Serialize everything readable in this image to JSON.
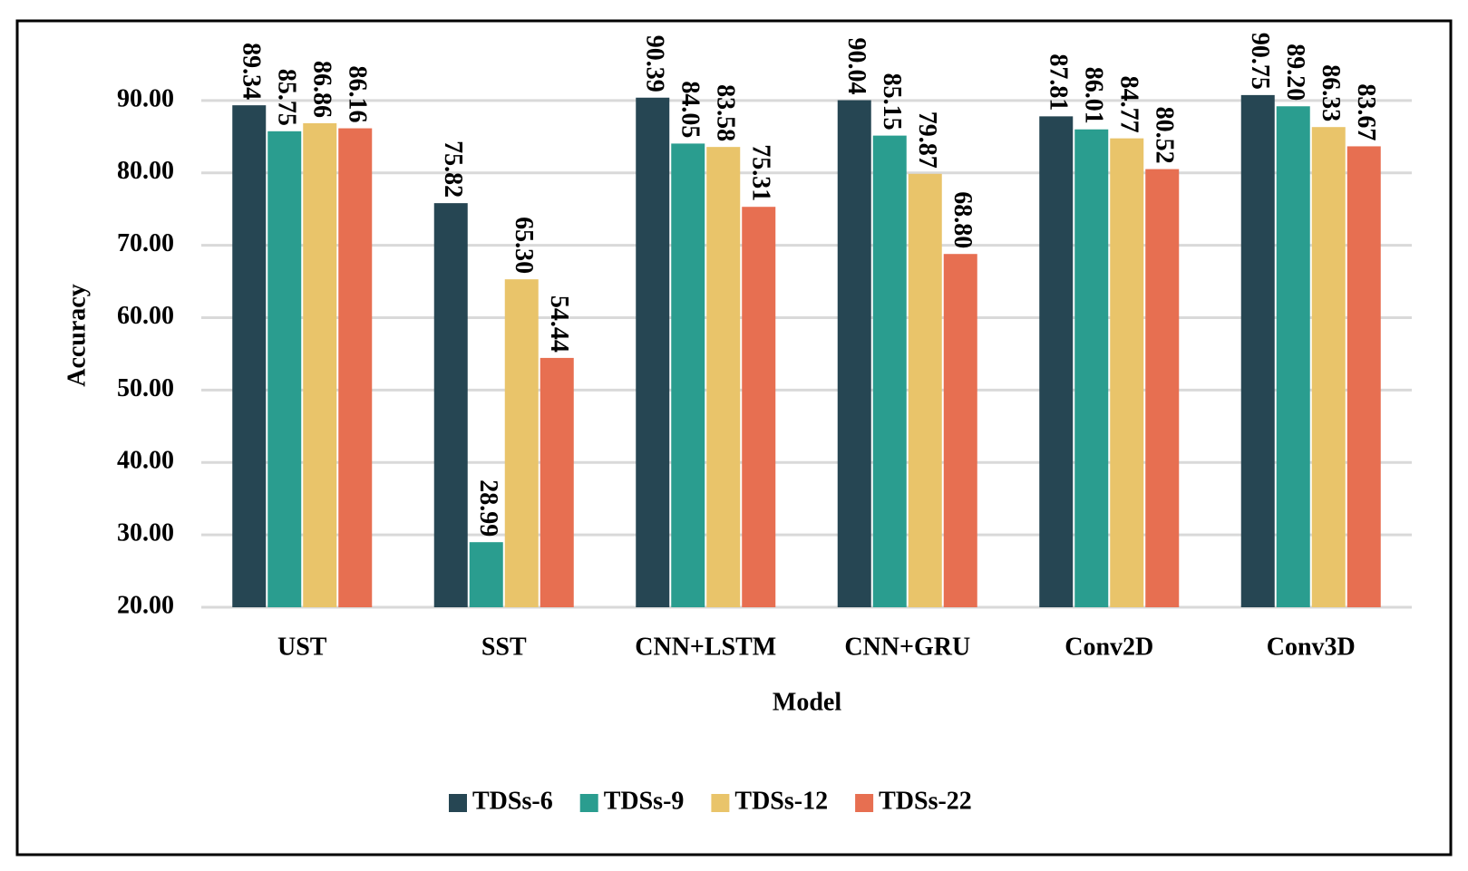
{
  "chart_data": {
    "type": "bar",
    "x_label": "Model",
    "y_label": "Accuracy",
    "categories": [
      "UST",
      "SST",
      "CNN+LSTM",
      "CNN+GRU",
      "Conv2D",
      "Conv3D"
    ],
    "series": [
      {
        "name": "TDSs-6",
        "color": "#264653",
        "values": [
          89.34,
          75.82,
          90.39,
          90.04,
          87.81,
          90.75
        ],
        "value_labels": [
          "89.34",
          "75.82",
          "90.39",
          "90.04",
          "87.81",
          "90.75"
        ]
      },
      {
        "name": "TDSs-9",
        "color": "#2a9d8f",
        "values": [
          85.75,
          28.99,
          84.05,
          85.15,
          86.01,
          89.2
        ],
        "value_labels": [
          "85.75",
          "28.99",
          "84.05",
          "85.15",
          "86.01",
          "89.20"
        ]
      },
      {
        "name": "TDSs-12",
        "color": "#e9c46a",
        "values": [
          86.86,
          65.3,
          83.58,
          79.87,
          84.77,
          86.33
        ],
        "value_labels": [
          "86.86",
          "65.30",
          "83.58",
          "79.87",
          "84.77",
          "86.33"
        ]
      },
      {
        "name": "TDSs-22",
        "color": "#e76f51",
        "values": [
          86.16,
          54.44,
          75.31,
          68.8,
          80.52,
          83.67
        ],
        "value_labels": [
          "86.16",
          "54.44",
          "75.31",
          "68.80",
          "80.52",
          "83.67"
        ]
      }
    ],
    "ylim": [
      20,
      100
    ],
    "yticks": [
      {
        "value": 20,
        "label": "20.00"
      },
      {
        "value": 30,
        "label": "30.00"
      },
      {
        "value": 40,
        "label": "40.00"
      },
      {
        "value": 50,
        "label": "50.00"
      },
      {
        "value": 60,
        "label": "60.00"
      },
      {
        "value": 70,
        "label": "70.00"
      },
      {
        "value": 80,
        "label": "80.00"
      },
      {
        "value": 90,
        "label": "90.00"
      }
    ],
    "grid": true,
    "legend": "bottom"
  }
}
